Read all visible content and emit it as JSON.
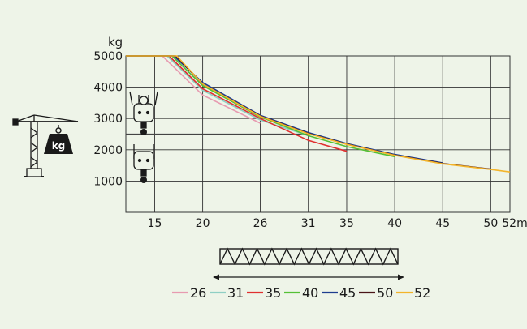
{
  "chart_data": {
    "type": "line",
    "ylabel": "kg",
    "x_unit": "m",
    "xlim": [
      12,
      52
    ],
    "ylim": [
      0,
      5000
    ],
    "x_ticks": [
      15,
      20,
      26,
      31,
      35,
      40,
      45,
      50,
      52
    ],
    "x_tick_labels": [
      "15",
      "20",
      "26",
      "31",
      "35",
      "40",
      "45",
      "50",
      "52m"
    ],
    "y_ticks": [
      1000,
      2000,
      3000,
      4000,
      5000
    ],
    "y_tick_labels": [
      "1000",
      "2000",
      "3000",
      "4000",
      "5000"
    ],
    "grid": true,
    "legend_position": "bottom",
    "two_fall_limit_kg": 2500,
    "series": [
      {
        "name": "26",
        "color": "#e79ab0",
        "x": [
          12,
          15.8,
          20,
          26
        ],
        "y": [
          5000,
          5000,
          3750,
          2850
        ]
      },
      {
        "name": "31",
        "color": "#8fcfc4",
        "x": [
          12,
          16.3,
          20,
          26,
          31
        ],
        "y": [
          5000,
          5000,
          3900,
          2950,
          2450
        ]
      },
      {
        "name": "35",
        "color": "#e03030",
        "x": [
          12,
          16.5,
          20,
          26,
          31,
          35
        ],
        "y": [
          5000,
          5000,
          3950,
          3000,
          2300,
          1950
        ]
      },
      {
        "name": "40",
        "color": "#55c035",
        "x": [
          12,
          16.8,
          20,
          26,
          31,
          35,
          40
        ],
        "y": [
          5000,
          5000,
          4050,
          3050,
          2450,
          2100,
          1780
        ]
      },
      {
        "name": "45",
        "color": "#1e3d8f",
        "x": [
          12,
          17.0,
          20,
          26,
          31,
          35,
          40,
          45
        ],
        "y": [
          5000,
          5000,
          4150,
          3100,
          2550,
          2200,
          1850,
          1580
        ]
      },
      {
        "name": "50",
        "color": "#4a1418",
        "x": [
          12,
          17.2,
          20,
          26,
          31,
          35,
          40,
          45,
          50
        ],
        "y": [
          5000,
          5000,
          4100,
          3080,
          2520,
          2180,
          1830,
          1560,
          1380
        ]
      },
      {
        "name": "52",
        "color": "#f3b42a",
        "x": [
          12,
          17.3,
          20,
          26,
          31,
          35,
          40,
          45,
          50,
          52
        ],
        "y": [
          5000,
          5000,
          4100,
          3070,
          2510,
          2170,
          1820,
          1550,
          1370,
          1290
        ]
      }
    ]
  },
  "icons": {
    "crane": "tower-crane-icon",
    "weight": "weight-icon",
    "weight_label": "kg",
    "hook_four_fall": "four-fall-hook-icon",
    "hook_two_fall": "two-fall-hook-icon",
    "jib": "jib-lattice-icon"
  },
  "colors": {
    "background": "#eef4e8",
    "grid": "#333333"
  }
}
